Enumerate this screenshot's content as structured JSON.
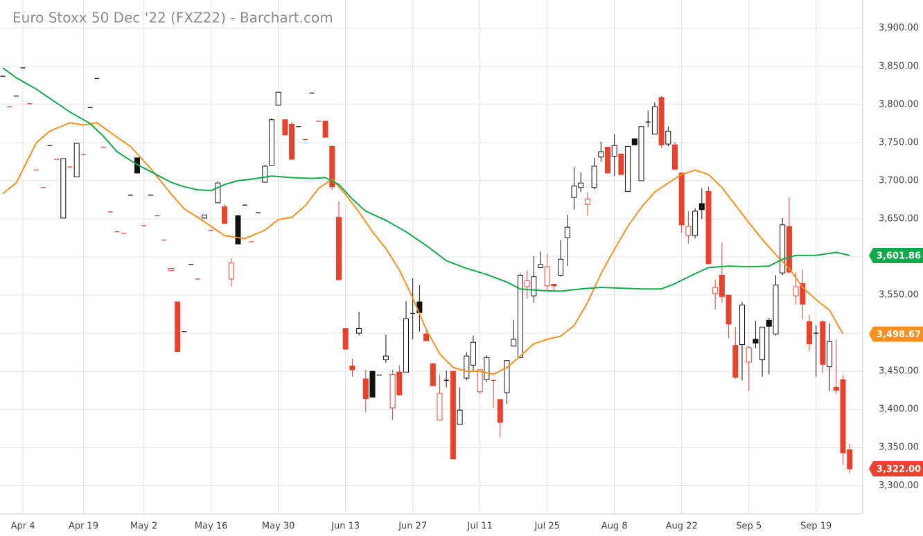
{
  "chart_data": {
    "type": "candlestick",
    "title": "Euro Stoxx 50 Dec '22 (FXZ22) - Barchart.com",
    "categories": [
      null,
      null,
      null,
      "Apr 4",
      null,
      null,
      null,
      null,
      null,
      null,
      null,
      null,
      "Apr 19",
      null,
      null,
      null,
      null,
      null,
      null,
      null,
      null,
      "May 2",
      null,
      null,
      null,
      null,
      null,
      null,
      null,
      null,
      null,
      "May 16",
      null,
      null,
      null,
      null,
      null,
      null,
      null,
      null,
      null,
      "May 30",
      null,
      null,
      null,
      null,
      null,
      null,
      null,
      null,
      null,
      "Jun 13",
      null,
      null,
      null,
      null,
      null,
      null,
      null,
      null,
      null,
      "Jun 27",
      null,
      null,
      null,
      null,
      null,
      null,
      null,
      null,
      null,
      "Jul 11",
      null,
      null,
      null,
      null,
      null,
      null,
      null,
      null,
      null,
      "Jul 25",
      null,
      null,
      null,
      null,
      null,
      null,
      null,
      null,
      null,
      "Aug 8",
      null,
      null,
      null,
      null,
      null,
      null,
      null,
      null,
      null,
      "Aug 22",
      null,
      null,
      null,
      null,
      null,
      null,
      null,
      null,
      null,
      "Sep 5",
      null,
      null,
      null,
      null,
      null,
      null,
      null,
      null,
      null,
      "Sep 19",
      null,
      null,
      null,
      null,
      null
    ],
    "open": [
      3837,
      3797,
      3811,
      3848,
      3801,
      3714,
      3691,
      3746,
      3728,
      3651,
      3718,
      3705,
      3734,
      3796,
      3834,
      3744,
      3659,
      3633,
      3631,
      3681,
      3730,
      3641,
      3681,
      3654,
      3622,
      3582,
      3541,
      3502,
      3590,
      3571,
      3651,
      3635,
      3671,
      3666,
      3571,
      3654,
      3668,
      3620,
      3658,
      3698,
      3720,
      3799,
      3780,
      3774,
      3771,
      3754,
      3815,
      3778,
      3778,
      3745,
      3652,
      3506,
      3457,
      3500,
      3440,
      3450,
      3445,
      3465,
      3402,
      3449,
      3449,
      3526,
      3541,
      3499,
      3460,
      3386,
      3438,
      3450,
      3380,
      3441,
      3458,
      3423,
      3439,
      3438,
      3413,
      3422,
      3483,
      3468,
      3561,
      3549,
      3586,
      3562,
      3564,
      3576,
      3625,
      3678,
      3691,
      3669,
      3691,
      3731,
      3744,
      3732,
      3735,
      3686,
      3755,
      3700,
      3777,
      3761,
      3809,
      3748,
      3747,
      3710,
      3628,
      3628,
      3670,
      3686,
      3552,
      3576,
      3550,
      3484,
      3485,
      3462,
      3492,
      3465,
      3517,
      3499,
      3579,
      3640,
      3549,
      3565,
      3515,
      3500,
      3515,
      3456,
      3429,
      3439,
      3347
    ],
    "high": [
      3837,
      3797,
      3811,
      3848,
      3801,
      3714,
      3691,
      3746,
      3728,
      3729,
      3718,
      3749,
      3734,
      3796,
      3834,
      3744,
      3659,
      3633,
      3631,
      3681,
      3730,
      3641,
      3681,
      3654,
      3622,
      3585,
      3541,
      3502,
      3590,
      3571,
      3655,
      3635,
      3699,
      3669,
      3598,
      3654,
      3668,
      3620,
      3658,
      3721,
      3782,
      3816,
      3780,
      3777,
      3771,
      3754,
      3815,
      3778,
      3778,
      3745,
      3673,
      3506,
      3466,
      3528,
      3452,
      3450,
      3445,
      3498,
      3452,
      3458,
      3542,
      3572,
      3563,
      3506,
      3460,
      3446,
      3451,
      3450,
      3429,
      3475,
      3497,
      3452,
      3471,
      3438,
      3413,
      3464,
      3517,
      3578,
      3583,
      3601,
      3607,
      3604,
      3564,
      3622,
      3655,
      3718,
      3711,
      3685,
      3730,
      3751,
      3744,
      3761,
      3735,
      3745,
      3755,
      3771,
      3792,
      3803,
      3811,
      3771,
      3751,
      3710,
      3660,
      3664,
      3690,
      3692,
      3570,
      3619,
      3550,
      3508,
      3541,
      3483,
      3516,
      3508,
      3520,
      3576,
      3651,
      3678,
      3580,
      3583,
      3524,
      3511,
      3517,
      3513,
      3492,
      3445,
      3355
    ],
    "low": [
      3837,
      3797,
      3811,
      3848,
      3801,
      3714,
      3691,
      3746,
      3728,
      3651,
      3718,
      3705,
      3734,
      3796,
      3834,
      3744,
      3659,
      3633,
      3631,
      3681,
      3710,
      3641,
      3681,
      3654,
      3622,
      3582,
      3476,
      3502,
      3590,
      3571,
      3651,
      3635,
      3671,
      3644,
      3561,
      3617,
      3668,
      3620,
      3658,
      3698,
      3720,
      3799,
      3760,
      3728,
      3771,
      3754,
      3815,
      3778,
      3757,
      3688,
      3570,
      3479,
      3443,
      3497,
      3396,
      3416,
      3445,
      3461,
      3386,
      3419,
      3449,
      3492,
      3502,
      3490,
      3431,
      3386,
      3429,
      3335,
      3380,
      3438,
      3451,
      3420,
      3436,
      3402,
      3363,
      3407,
      3483,
      3468,
      3545,
      3540,
      3586,
      3556,
      3556,
      3574,
      3588,
      3662,
      3685,
      3654,
      3689,
      3725,
      3710,
      3706,
      3708,
      3686,
      3747,
      3700,
      3770,
      3761,
      3743,
      3745,
      3715,
      3632,
      3618,
      3624,
      3650,
      3591,
      3531,
      3540,
      3493,
      3440,
      3438,
      3424,
      3480,
      3443,
      3446,
      3497,
      3576,
      3578,
      3538,
      3518,
      3476,
      3443,
      3447,
      3424,
      3420,
      3327,
      3316
    ],
    "close": [
      3837,
      3797,
      3811,
      3848,
      3801,
      3714,
      3691,
      3746,
      3728,
      3729,
      3718,
      3749,
      3734,
      3796,
      3834,
      3744,
      3659,
      3633,
      3631,
      3681,
      3710,
      3641,
      3681,
      3654,
      3622,
      3585,
      3476,
      3502,
      3590,
      3571,
      3655,
      3635,
      3697,
      3644,
      3592,
      3617,
      3668,
      3620,
      3658,
      3719,
      3780,
      3816,
      3760,
      3728,
      3771,
      3754,
      3815,
      3778,
      3757,
      3692,
      3570,
      3479,
      3452,
      3506,
      3414,
      3416,
      3445,
      3470,
      3446,
      3419,
      3519,
      3526,
      3527,
      3490,
      3431,
      3421,
      3438,
      3335,
      3399,
      3470,
      3488,
      3452,
      3468,
      3437,
      3383,
      3464,
      3492,
      3576,
      3569,
      3574,
      3590,
      3587,
      3562,
      3597,
      3639,
      3693,
      3697,
      3676,
      3719,
      3738,
      3710,
      3746,
      3708,
      3745,
      3747,
      3771,
      3777,
      3797,
      3747,
      3765,
      3715,
      3642,
      3640,
      3660,
      3662,
      3591,
      3560,
      3548,
      3512,
      3442,
      3537,
      3481,
      3487,
      3508,
      3509,
      3563,
      3642,
      3580,
      3561,
      3538,
      3486,
      3499,
      3459,
      3489,
      3425,
      3343,
      3322
    ],
    "last_close_label": "3,322.00",
    "up_color": "#111111",
    "down_color": "#e8412c",
    "series": [
      {
        "color": "#f7901e",
        "last_value": 3498.67,
        "last_label": "3,498.67",
        "x": [
          0,
          2,
          5,
          7,
          10,
          12,
          14,
          17,
          19,
          22,
          25,
          27,
          29,
          31,
          33,
          36,
          39,
          41,
          43,
          45,
          47,
          49,
          51,
          53,
          55,
          57,
          59,
          61,
          63,
          65,
          67,
          69,
          71,
          73,
          75,
          77,
          79,
          81,
          83,
          85,
          87,
          89,
          91,
          93,
          95,
          97,
          99,
          101,
          103,
          105,
          107,
          109,
          111,
          113,
          115,
          117,
          119,
          121,
          123,
          125
        ],
        "values": [
          3683,
          3697,
          3750,
          3765,
          3776,
          3773,
          3776,
          3757,
          3745,
          3716,
          3683,
          3663,
          3652,
          3640,
          3628,
          3624,
          3635,
          3649,
          3652,
          3667,
          3690,
          3702,
          3682,
          3659,
          3633,
          3611,
          3583,
          3546,
          3505,
          3473,
          3455,
          3450,
          3450,
          3446,
          3455,
          3470,
          3486,
          3492,
          3496,
          3510,
          3540,
          3578,
          3610,
          3640,
          3665,
          3685,
          3697,
          3708,
          3714,
          3708,
          3691,
          3668,
          3645,
          3623,
          3603,
          3585,
          3560,
          3544,
          3530,
          3499
        ]
      },
      {
        "color": "#12a94b",
        "last_value": 3601.86,
        "last_label": "3,601.86",
        "x": [
          0,
          2,
          5,
          7,
          10,
          13,
          15,
          17,
          20,
          22,
          25,
          27,
          29,
          31,
          33,
          35,
          37,
          40,
          43,
          46,
          48,
          50,
          52,
          54,
          57,
          60,
          63,
          66,
          69,
          72,
          75,
          77,
          80,
          83,
          86,
          89,
          92,
          95,
          98,
          100,
          103,
          105,
          108,
          111,
          114,
          116,
          118,
          121,
          124,
          126
        ],
        "values": [
          3848,
          3835,
          3820,
          3808,
          3790,
          3775,
          3758,
          3738,
          3721,
          3712,
          3698,
          3692,
          3688,
          3687,
          3695,
          3700,
          3702,
          3706,
          3704,
          3703,
          3704,
          3695,
          3676,
          3660,
          3648,
          3633,
          3615,
          3595,
          3585,
          3577,
          3567,
          3558,
          3556,
          3555,
          3558,
          3560,
          3559,
          3558,
          3558,
          3565,
          3578,
          3586,
          3588,
          3587,
          3588,
          3597,
          3602,
          3602,
          3606,
          3602
        ]
      }
    ],
    "ylim": [
      3263,
      3937
    ],
    "yticks": [
      {
        "value": 3300,
        "label": "3,300.00"
      },
      {
        "value": 3350,
        "label": "3,350.00"
      },
      {
        "value": 3400,
        "label": "3,400.00"
      },
      {
        "value": 3450,
        "label": "3,450.00"
      },
      {
        "value": 3500,
        "label": "3,500.00"
      },
      {
        "value": 3550,
        "label": "3,550.00"
      },
      {
        "value": 3600,
        "label": "3,600.00"
      },
      {
        "value": 3650,
        "label": "3,650.00"
      },
      {
        "value": 3700,
        "label": "3,700.00"
      },
      {
        "value": 3750,
        "label": "3,750.00"
      },
      {
        "value": 3800,
        "label": "3,800.00"
      },
      {
        "value": 3850,
        "label": "3,850.00"
      },
      {
        "value": 3900,
        "label": "3,900.00"
      }
    ],
    "grid": true
  }
}
